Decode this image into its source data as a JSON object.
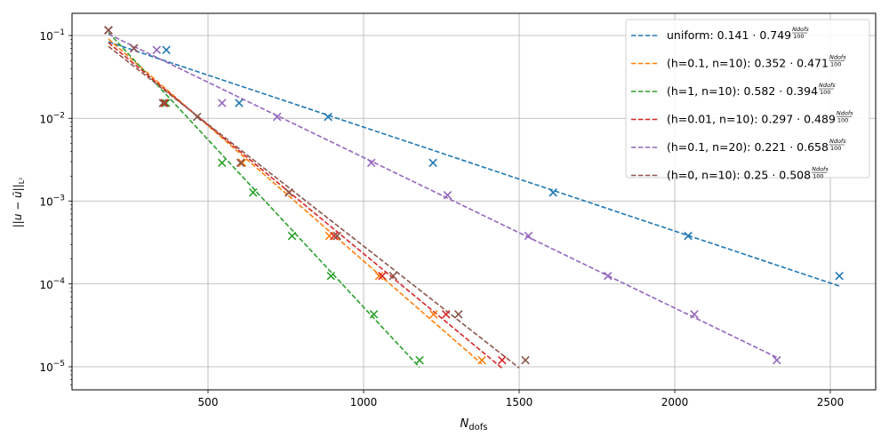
{
  "chart_data": {
    "type": "scatter",
    "title": "",
    "xlabel": "N_dofs",
    "ylabel": "||u - ū||_{L^2}",
    "xlabel_main": "N",
    "xlabel_sub": "dofs",
    "ylabel_text": "||u − ū||",
    "ylabel_sub": "L²",
    "xscale": "linear",
    "yscale": "log",
    "xlim": [
      80,
      2650
    ],
    "ylim": [
      5.5e-06,
      0.19
    ],
    "xticks": [
      500,
      1000,
      1500,
      2000,
      2500
    ],
    "xtick_labels": [
      "500",
      "1000",
      "1500",
      "2000",
      "2500"
    ],
    "yticks": [
      0.1,
      0.01,
      0.001,
      0.0001,
      1e-05
    ],
    "ytick_labels": [
      [
        "10",
        "−1"
      ],
      [
        "10",
        "−2"
      ],
      [
        "10",
        "−3"
      ],
      [
        "10",
        "−4"
      ],
      [
        "10",
        "−5"
      ]
    ],
    "grid": true,
    "legend_position": "upper right",
    "series": [
      {
        "name": "uniform",
        "label_prefix": "uniform: ",
        "coef": 0.141,
        "base": 0.749,
        "coef_label": "0.141",
        "base_label": "0.749",
        "color": "#1f77b4",
        "x": [
          180,
          366,
          600,
          886,
          1223,
          1609,
          2043,
          2529
        ],
        "y": [
          0.116,
          0.067,
          0.0153,
          0.0104,
          0.0029,
          0.00127,
          0.00038,
          0.000125
        ],
        "fit_range": [
          180,
          2529
        ]
      },
      {
        "name": "(h=0.1, n=10)",
        "label_prefix": "(h=0.1, n=10): ",
        "coef": 0.352,
        "base": 0.471,
        "coef_label": "0.352",
        "base_label": "0.471",
        "color": "#ff7f0e",
        "x": [
          180,
          360,
          610,
          760,
          890,
          1050,
          1225,
          1380
        ],
        "y": [
          0.116,
          0.0153,
          0.0029,
          0.00127,
          0.00038,
          0.000125,
          4.3e-05,
          1.2e-05
        ],
        "fit_range": [
          180,
          1380
        ]
      },
      {
        "name": "(h=1, n=10)",
        "label_prefix": "(h=1, n=10): ",
        "coef": 0.582,
        "base": 0.394,
        "coef_label": "0.582",
        "base_label": "0.394",
        "color": "#2ca02c",
        "x": [
          180,
          365,
          545,
          645,
          770,
          895,
          1033,
          1180
        ],
        "y": [
          0.116,
          0.0153,
          0.0029,
          0.00127,
          0.00038,
          0.000125,
          4.3e-05,
          1.2e-05
        ],
        "fit_range": [
          180,
          1180
        ]
      },
      {
        "name": "(h=0.01, n=10)",
        "label_prefix": "(h=0.01, n=10): ",
        "coef": 0.297,
        "base": 0.489,
        "coef_label": "0.297",
        "base_label": "0.489",
        "color": "#d62728",
        "x": [
          180,
          360,
          605,
          760,
          905,
          1060,
          1265,
          1445
        ],
        "y": [
          0.116,
          0.0153,
          0.0029,
          0.00127,
          0.00038,
          0.000125,
          4.3e-05,
          1.2e-05
        ],
        "fit_range": [
          180,
          1445
        ]
      },
      {
        "name": "(h=0.1, n=20)",
        "label_prefix": "(h=0.1, n=20): ",
        "coef": 0.221,
        "base": 0.658,
        "coef_label": "0.221",
        "base_label": "0.658",
        "color": "#9467bd",
        "x": [
          180,
          262,
          335,
          545,
          722,
          1025,
          1270,
          1530,
          1785,
          2063,
          2328
        ],
        "y": [
          0.116,
          0.07,
          0.067,
          0.0153,
          0.0104,
          0.0029,
          0.00118,
          0.00038,
          0.000125,
          4.3e-05,
          1.2e-05
        ],
        "fit_range": [
          180,
          2328
        ]
      },
      {
        "name": "(h=0, n=10)",
        "label_prefix": "(h=0, n=10): ",
        "coef": 0.25,
        "base": 0.508,
        "coef_label": "0.25",
        "base_label": "0.508",
        "color": "#8c564b",
        "x": [
          180,
          262,
          355,
          465,
          605,
          760,
          915,
          1095,
          1305,
          1520
        ],
        "y": [
          0.116,
          0.07,
          0.0153,
          0.0104,
          0.0029,
          0.00127,
          0.00038,
          0.000125,
          4.3e-05,
          1.2e-05
        ],
        "fit_range": [
          180,
          1500
        ]
      }
    ],
    "legend_exponent_num": "N",
    "legend_exponent_num_sub": "dofs",
    "legend_exponent_den": "100"
  }
}
